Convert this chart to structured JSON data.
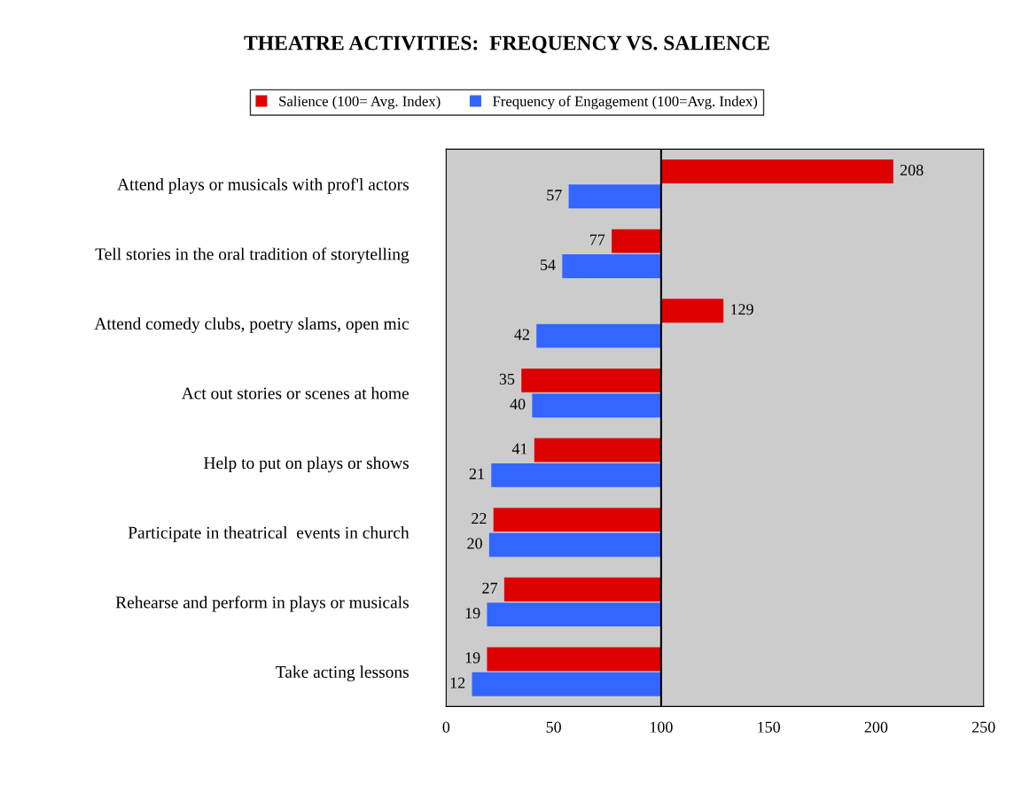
{
  "chart_data": {
    "type": "bar",
    "orientation": "horizontal",
    "title": "THEATRE ACTIVITIES:  FREQUENCY VS. SALIENCE",
    "categories": [
      "Attend plays or musicals with prof'l actors",
      "Tell stories in the oral tradition of storytelling",
      "Attend comedy clubs, poetry slams, open mic",
      "Act out stories or scenes at home",
      "Help to put on plays or shows",
      "Participate in theatrical  events in church",
      "Rehearse and perform in plays or musicals",
      "Take acting lessons"
    ],
    "series": [
      {
        "name": "Salience (100= Avg. Index)",
        "color": "#dd0000",
        "base": [
          100,
          100,
          100,
          100,
          100,
          100,
          100,
          100
        ],
        "values": [
          108,
          -23,
          29,
          -65,
          -59,
          -78,
          -73,
          -81
        ],
        "value_labels": [
          "208",
          "77",
          "129",
          "35",
          "41",
          "22",
          "27",
          "19"
        ]
      },
      {
        "name": "Frequency of Engagement (100=Avg. Index)",
        "color": "#3366ff",
        "base": [
          100,
          100,
          100,
          100,
          100,
          100,
          100,
          100
        ],
        "values": [
          -43,
          -46,
          -58,
          -60,
          -79,
          -80,
          -81,
          -88
        ],
        "value_labels": [
          "57",
          "54",
          "42",
          "40",
          "21",
          "20",
          "19",
          "12"
        ]
      }
    ],
    "xlim": [
      0,
      250
    ],
    "xticks": [
      0,
      50,
      100,
      150,
      200,
      250
    ],
    "ref_lines": [
      {
        "axis": "x",
        "value": 100,
        "color": "#000000"
      }
    ],
    "legend": "top"
  }
}
